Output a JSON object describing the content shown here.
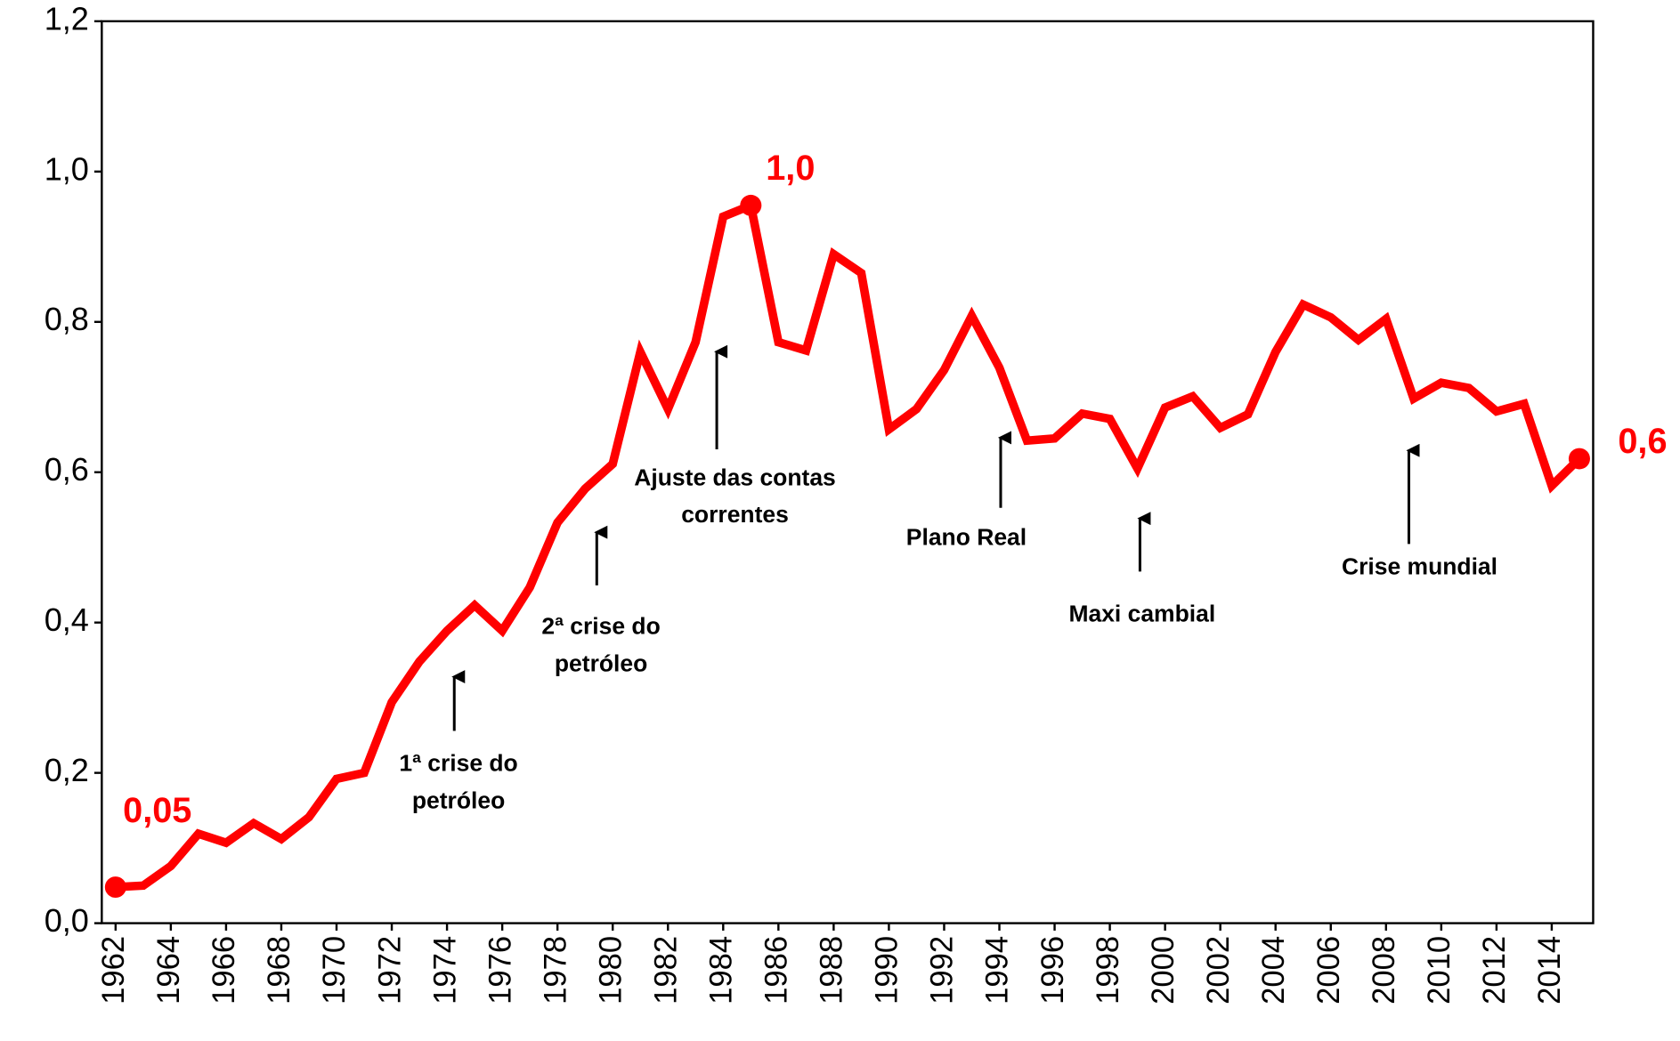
{
  "chart_data": {
    "type": "line",
    "color": "#ff0000",
    "x": [
      1962,
      1963,
      1964,
      1965,
      1966,
      1967,
      1968,
      1969,
      1970,
      1971,
      1972,
      1973,
      1974,
      1975,
      1976,
      1977,
      1978,
      1979,
      1980,
      1981,
      1982,
      1983,
      1984,
      1985,
      1986,
      1987,
      1988,
      1989,
      1990,
      1991,
      1992,
      1993,
      1994,
      1995,
      1996,
      1997,
      1998,
      1999,
      2000,
      2001,
      2002,
      2003,
      2004,
      2005,
      2006,
      2007,
      2008,
      2009,
      2010,
      2011,
      2012,
      2013,
      2014,
      2015
    ],
    "values": [
      0.048,
      0.05,
      0.076,
      0.119,
      0.107,
      0.133,
      0.112,
      0.141,
      0.192,
      0.2,
      0.294,
      0.348,
      0.389,
      0.423,
      0.389,
      0.447,
      0.533,
      0.578,
      0.611,
      0.76,
      0.684,
      0.773,
      0.94,
      0.955,
      0.773,
      0.762,
      0.89,
      0.865,
      0.657,
      0.684,
      0.736,
      0.808,
      0.739,
      0.642,
      0.645,
      0.678,
      0.671,
      0.605,
      0.686,
      0.701,
      0.659,
      0.677,
      0.76,
      0.823,
      0.806,
      0.776,
      0.804,
      0.698,
      0.719,
      0.712,
      0.681,
      0.691,
      0.582,
      0.618
    ],
    "value_labels": [
      "0,05",
      null,
      null,
      null,
      null,
      null,
      null,
      null,
      null,
      null,
      null,
      null,
      null,
      null,
      null,
      null,
      null,
      null,
      null,
      null,
      null,
      null,
      null,
      "1,0",
      null,
      null,
      null,
      null,
      null,
      null,
      null,
      null,
      null,
      null,
      null,
      null,
      null,
      null,
      null,
      null,
      null,
      null,
      null,
      null,
      null,
      null,
      null,
      null,
      null,
      null,
      null,
      null,
      null,
      "0,6"
    ],
    "xlim": [
      1961.5,
      2015.5
    ],
    "xticks": [
      1962,
      1964,
      1966,
      1968,
      1970,
      1972,
      1974,
      1976,
      1978,
      1980,
      1982,
      1984,
      1986,
      1988,
      1990,
      1992,
      1994,
      1996,
      1998,
      2000,
      2002,
      2004,
      2006,
      2008,
      2010,
      2012,
      2014
    ],
    "ylim": [
      0,
      1.2
    ],
    "yticks": [
      {
        "value": 0,
        "label": "0,0"
      },
      {
        "value": 0.2,
        "label": "0,2"
      },
      {
        "value": 0.4,
        "label": "0,4"
      },
      {
        "value": 0.6,
        "label": "0,6"
      },
      {
        "value": 0.8,
        "label": "0,8"
      },
      {
        "value": 1.0,
        "label": "1,0"
      },
      {
        "value": 1.2,
        "label": "1,2"
      }
    ],
    "grid": false,
    "annotations": [
      {
        "lines": [
          "1ª crise do",
          "petróleo"
        ]
      },
      {
        "lines": [
          "2ª crise do",
          "petróleo"
        ]
      },
      {
        "lines": [
          "Ajuste das contas",
          "correntes"
        ]
      },
      {
        "lines": [
          "Plano Real"
        ]
      },
      {
        "lines": [
          "Maxi cambial"
        ]
      },
      {
        "lines": [
          "Crise mundial"
        ]
      }
    ]
  }
}
